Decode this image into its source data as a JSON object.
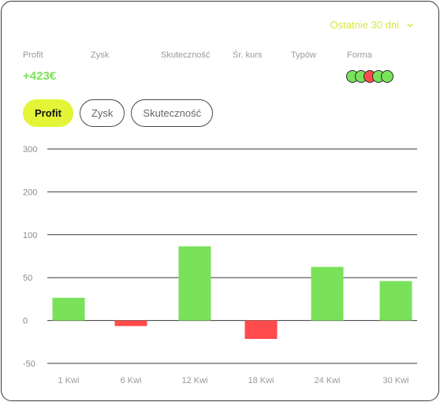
{
  "header": {
    "period_label": "Ostatnie 30 dni"
  },
  "stats": {
    "labels": [
      "Profit",
      "Zysk",
      "Skuteczność",
      "Śr. kurs",
      "Typów",
      "Forma"
    ],
    "profit_value": "+423€"
  },
  "forma": [
    "win",
    "win",
    "loss",
    "win",
    "win"
  ],
  "tabs": [
    {
      "label": "Profit",
      "active": true
    },
    {
      "label": "Zysk",
      "active": false
    },
    {
      "label": "Skuteczność",
      "active": false
    }
  ],
  "colors": {
    "accent": "#e3f536",
    "positive": "#7ae25a",
    "negative": "#ff4b4b",
    "period": "#d7e83a"
  },
  "chart_data": {
    "type": "bar",
    "categories": [
      "1 Kwi",
      "6 Kwi",
      "12 Kwi",
      "18 Kwi",
      "24 Kwi",
      "30 Kwi"
    ],
    "y_tick_labels": [
      "300",
      "200",
      "100",
      "50",
      "0",
      "-50"
    ],
    "values": [
      0.53,
      -0.13,
      1.73,
      -0.43,
      1.25,
      0.92
    ],
    "value_unit_note": "",
    "title": "",
    "xlabel": "",
    "ylabel": "",
    "grid": true
  }
}
